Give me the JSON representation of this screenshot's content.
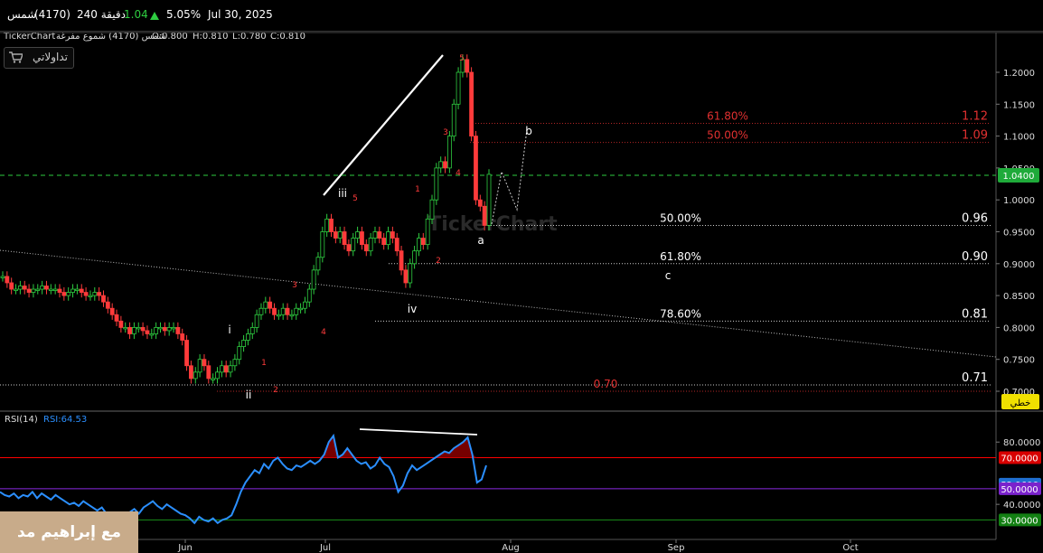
{
  "header": {
    "symbol_name": "شمس",
    "symbol_code": "(4170)",
    "interval": "240 دقيقة",
    "last_price": "1.04",
    "change_pct": "5.05%",
    "date": "Jul 30, 2025"
  },
  "info_bar": {
    "brand": "TickerChart",
    "title": "شمس (4170) شموع مفرغة",
    "open": "O:0.800",
    "high": "H:0.810",
    "low": "L:0.780",
    "close": "C:0.810"
  },
  "cart_button": {
    "label": "تداولاتي",
    "icon": "cart-icon"
  },
  "watermark_chart": "TickerChart",
  "watermark_corner": "مع إبراهيم مد",
  "chart_data": [
    {
      "type": "candlestick",
      "title": "شمس (4170)",
      "y_ticks": [
        "1.2000",
        "1.1500",
        "1.1000",
        "1.0500",
        "1.0000",
        "0.9500",
        "0.9000",
        "0.8500",
        "0.8000",
        "0.7500",
        "0.7000"
      ],
      "ylim": [
        0.69,
        1.25
      ],
      "x_ticks": [
        "Jun",
        "Jul",
        "Aug",
        "Sep",
        "Oct"
      ],
      "last_price_label": "1.0400",
      "drawing_label": "خطي",
      "fib_levels": [
        {
          "pct": "61.80%",
          "value": "1.12",
          "price": 1.12,
          "color": "#e03030"
        },
        {
          "pct": "50.00%",
          "value": "1.09",
          "price": 1.09,
          "color": "#e03030"
        },
        {
          "pct": "50.00%",
          "value": "0.96",
          "price": 0.96,
          "color": "#ffffff"
        },
        {
          "pct": "61.80%",
          "value": "0.90",
          "price": 0.9,
          "color": "#ffffff"
        },
        {
          "pct": "78.60%",
          "value": "0.81",
          "price": 0.81,
          "color": "#ffffff"
        },
        {
          "pct": "",
          "value": "0.71",
          "price": 0.71,
          "color": "#ffffff"
        },
        {
          "pct": "0.70",
          "value": "",
          "price": 0.7,
          "color": "#e03030"
        }
      ],
      "wave_labels_white": [
        "i",
        "ii",
        "iii",
        "iv",
        "a",
        "b",
        "c"
      ],
      "wave_labels_red": [
        "1",
        "2",
        "3",
        "4",
        "5",
        "1",
        "2",
        "3",
        "4",
        "5"
      ],
      "close_series": [
        0.88,
        0.87,
        0.86,
        0.86,
        0.865,
        0.86,
        0.855,
        0.86,
        0.86,
        0.865,
        0.86,
        0.86,
        0.86,
        0.855,
        0.85,
        0.855,
        0.86,
        0.86,
        0.855,
        0.85,
        0.85,
        0.855,
        0.85,
        0.84,
        0.83,
        0.82,
        0.81,
        0.8,
        0.8,
        0.79,
        0.8,
        0.8,
        0.795,
        0.79,
        0.79,
        0.8,
        0.8,
        0.795,
        0.8,
        0.8,
        0.79,
        0.78,
        0.74,
        0.72,
        0.73,
        0.75,
        0.74,
        0.72,
        0.72,
        0.73,
        0.74,
        0.73,
        0.74,
        0.75,
        0.77,
        0.78,
        0.79,
        0.8,
        0.82,
        0.83,
        0.84,
        0.83,
        0.82,
        0.82,
        0.83,
        0.82,
        0.82,
        0.83,
        0.83,
        0.84,
        0.86,
        0.89,
        0.91,
        0.95,
        0.97,
        0.95,
        0.94,
        0.95,
        0.93,
        0.92,
        0.94,
        0.95,
        0.93,
        0.92,
        0.94,
        0.95,
        0.94,
        0.93,
        0.95,
        0.94,
        0.92,
        0.89,
        0.87,
        0.9,
        0.92,
        0.94,
        0.93,
        0.97,
        1.0,
        1.05,
        1.06,
        1.05,
        1.1,
        1.15,
        1.2,
        1.22,
        1.2,
        1.1,
        1.0,
        0.99,
        0.96,
        1.04
      ],
      "series": [
        {
          "name": "RSI(14)",
          "value_label": "RSI:64.53"
        }
      ],
      "rsi": {
        "label": "RSI(14)",
        "value_label": "RSI:64.53",
        "y_ticks": [
          "80.0000",
          "40.0000"
        ],
        "ylim": [
          25,
          90
        ],
        "levels": [
          {
            "label": "70.0000",
            "value": 70,
            "color": "#ff0000",
            "box_color": "#d80000"
          },
          {
            "label": "52.9606",
            "value": 52.96,
            "color": "#2b8fff",
            "box_color": "#1f6fd0"
          },
          {
            "label": "50.0000",
            "value": 50,
            "color": "#8a2be2",
            "box_color": "#7a22cc"
          },
          {
            "label": "30.0000",
            "value": 30,
            "color": "#1a8f1a",
            "box_color": "#138013"
          }
        ],
        "values": [
          48,
          46,
          45,
          47,
          44,
          46,
          45,
          48,
          44,
          47,
          45,
          43,
          46,
          44,
          42,
          40,
          41,
          39,
          42,
          40,
          38,
          36,
          38,
          34,
          32,
          30,
          29,
          31,
          35,
          37,
          34,
          38,
          40,
          42,
          39,
          37,
          40,
          38,
          36,
          34,
          33,
          31,
          28,
          32,
          30,
          29,
          31,
          28,
          30,
          31,
          33,
          40,
          48,
          54,
          58,
          62,
          60,
          66,
          63,
          68,
          70,
          66,
          63,
          62,
          65,
          64,
          66,
          68,
          66,
          68,
          72,
          80,
          84,
          70,
          72,
          76,
          72,
          68,
          66,
          67,
          63,
          65,
          70,
          66,
          64,
          58,
          48,
          52,
          60,
          65,
          62,
          64,
          66,
          68,
          70,
          72,
          74,
          73,
          76,
          78,
          80,
          83,
          72,
          54,
          56,
          65
        ]
      }
    }
  ]
}
